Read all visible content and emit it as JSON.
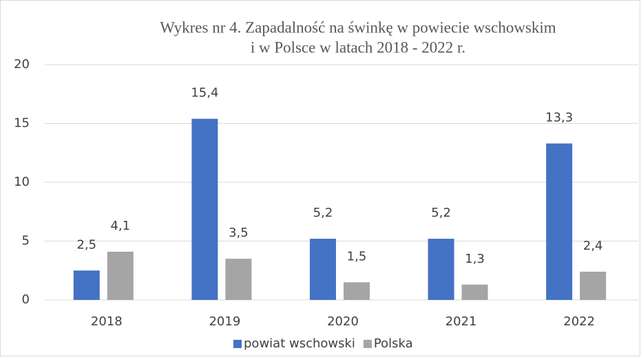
{
  "chart_data": {
    "type": "bar",
    "title": [
      "Wykres nr 4. Zapadalność na świnkę w powiecie wschowskim",
      "i w Polsce w latach 2018 - 2022 r."
    ],
    "categories": [
      "2018",
      "2019",
      "2020",
      "2021",
      "2022"
    ],
    "series": [
      {
        "name": "powiat wschowski",
        "color": "#4472c4",
        "values": [
          2.5,
          15.4,
          5.2,
          5.2,
          13.3
        ],
        "value_labels": [
          "2,5",
          "15,4",
          "5,2",
          "5,2",
          "13,3"
        ]
      },
      {
        "name": "Polska",
        "color": "#a5a5a5",
        "values": [
          4.1,
          3.5,
          1.5,
          1.3,
          2.4
        ],
        "value_labels": [
          "4,1",
          "3,5",
          "1,5",
          "1,3",
          "2,4"
        ]
      }
    ],
    "ylim": [
      0,
      20
    ],
    "yticks": [
      0,
      5,
      10,
      15,
      20
    ],
    "grid": true,
    "legend": "bottom"
  }
}
